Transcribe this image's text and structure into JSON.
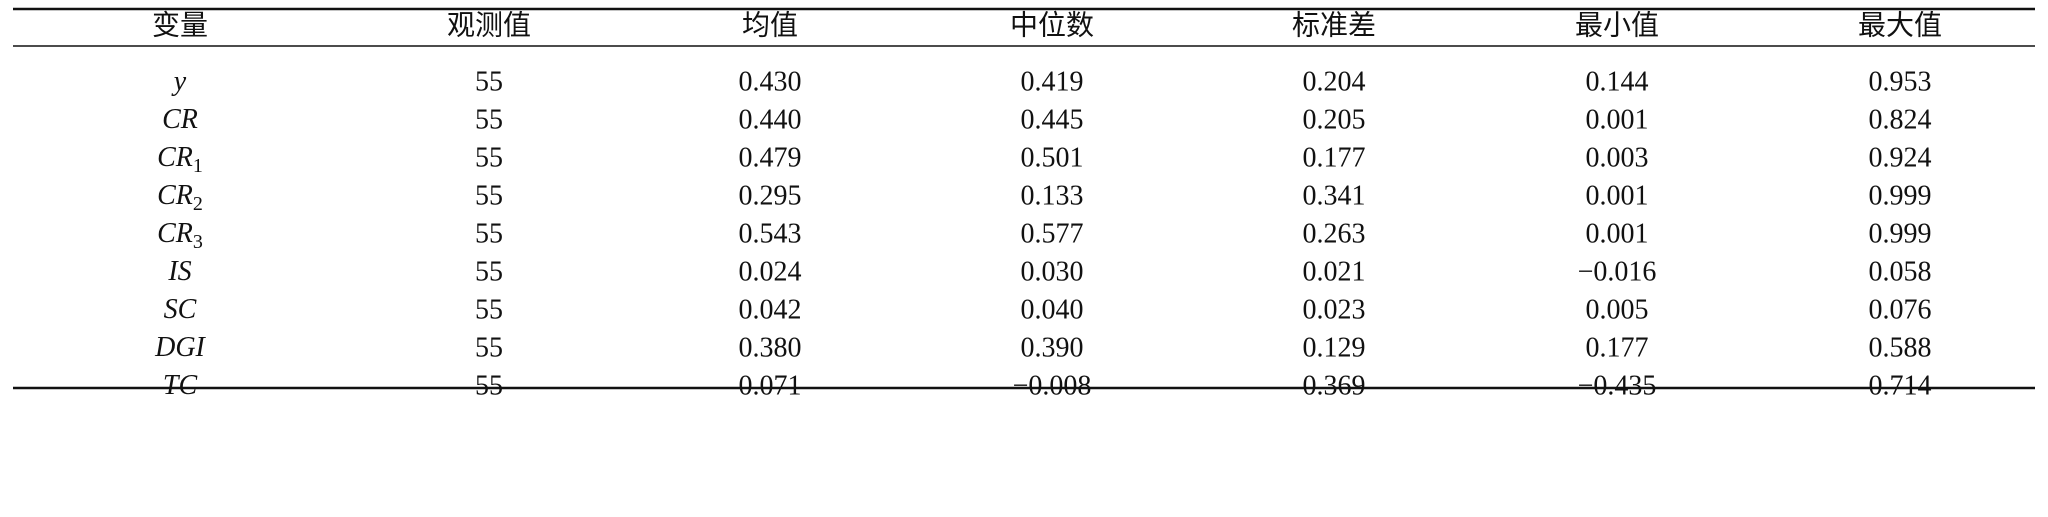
{
  "table": {
    "header": [
      "变量",
      "观测值",
      "均值",
      "中位数",
      "标准差",
      "最小值",
      "最大值"
    ],
    "rows": [
      {
        "variable": "y",
        "values": [
          55,
          "0.430",
          "0.419",
          "0.204",
          "0.144",
          "0.953"
        ]
      },
      {
        "variable": "CR",
        "values": [
          55,
          "0.440",
          "0.445",
          "0.205",
          "0.001",
          "0.824"
        ]
      },
      {
        "variable": "CR",
        "subscript": "1",
        "values": [
          55,
          "0.479",
          "0.501",
          "0.177",
          "0.003",
          "0.924"
        ]
      },
      {
        "variable": "CR",
        "subscript": "2",
        "values": [
          55,
          "0.295",
          "0.133",
          "0.341",
          "0.001",
          "0.999"
        ]
      },
      {
        "variable": "CR",
        "subscript": "3",
        "values": [
          55,
          "0.543",
          "0.577",
          "0.263",
          "0.001",
          "0.999"
        ]
      },
      {
        "variable": "IS",
        "values": [
          55,
          "0.024",
          "0.030",
          "0.021",
          "−0.016",
          "0.058"
        ]
      },
      {
        "variable": "SC",
        "values": [
          55,
          "0.042",
          "0.040",
          "0.023",
          "0.005",
          "0.076"
        ]
      },
      {
        "variable": "DGI",
        "values": [
          55,
          "0.380",
          "0.390",
          "0.129",
          "0.177",
          "0.588"
        ]
      },
      {
        "variable": "TC",
        "values": [
          55,
          "0.071",
          "−0.008",
          "0.369",
          "−0.435",
          "0.714"
        ]
      }
    ]
  }
}
